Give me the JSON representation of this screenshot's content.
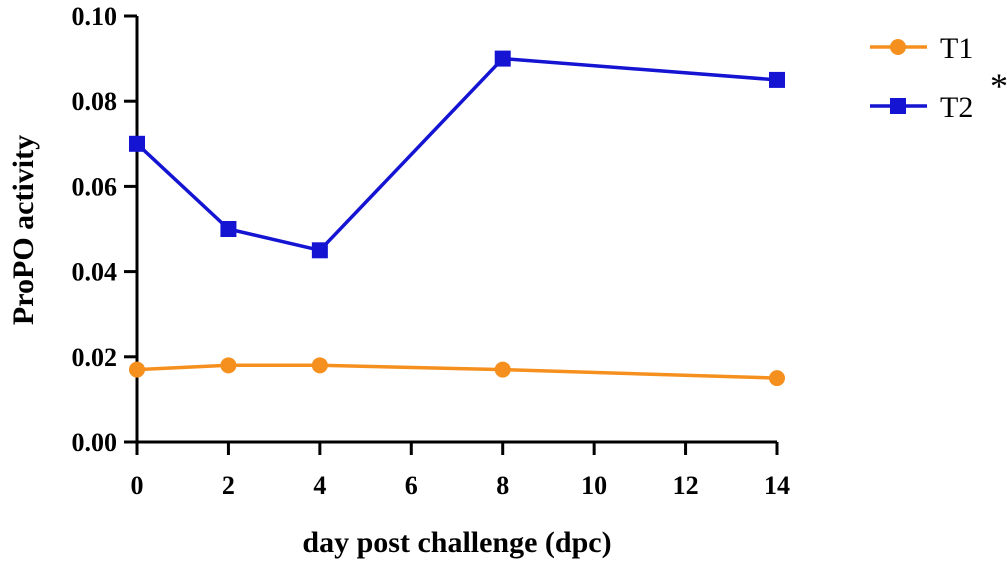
{
  "chart_data": {
    "type": "line",
    "xlabel": "day post challenge (dpc)",
    "ylabel": "ProPO activity",
    "xlim": [
      0,
      14
    ],
    "ylim": [
      0,
      0.1
    ],
    "xticks": [
      0,
      2,
      4,
      6,
      8,
      10,
      12,
      14
    ],
    "xtick_labels": [
      "0",
      "2",
      "4",
      "6",
      "8",
      "10",
      "12",
      "14"
    ],
    "yticks": [
      0,
      0.02,
      0.04,
      0.06,
      0.08,
      0.1
    ],
    "ytick_labels": [
      "0.00",
      "0.02",
      "0.04",
      "0.06",
      "0.08",
      "0.10"
    ],
    "grid": false,
    "legend_position": "top-right",
    "series": [
      {
        "name": "T1",
        "color": "#f5901e",
        "marker": "circle",
        "x": [
          0,
          2,
          4,
          8,
          14
        ],
        "y": [
          0.017,
          0.018,
          0.018,
          0.017,
          0.015
        ]
      },
      {
        "name": "T2",
        "color": "#1414d2",
        "marker": "square",
        "x": [
          0,
          2,
          4,
          8,
          14
        ],
        "y": [
          0.07,
          0.05,
          0.045,
          0.09,
          0.085
        ]
      }
    ],
    "annotations": [
      "*"
    ]
  }
}
